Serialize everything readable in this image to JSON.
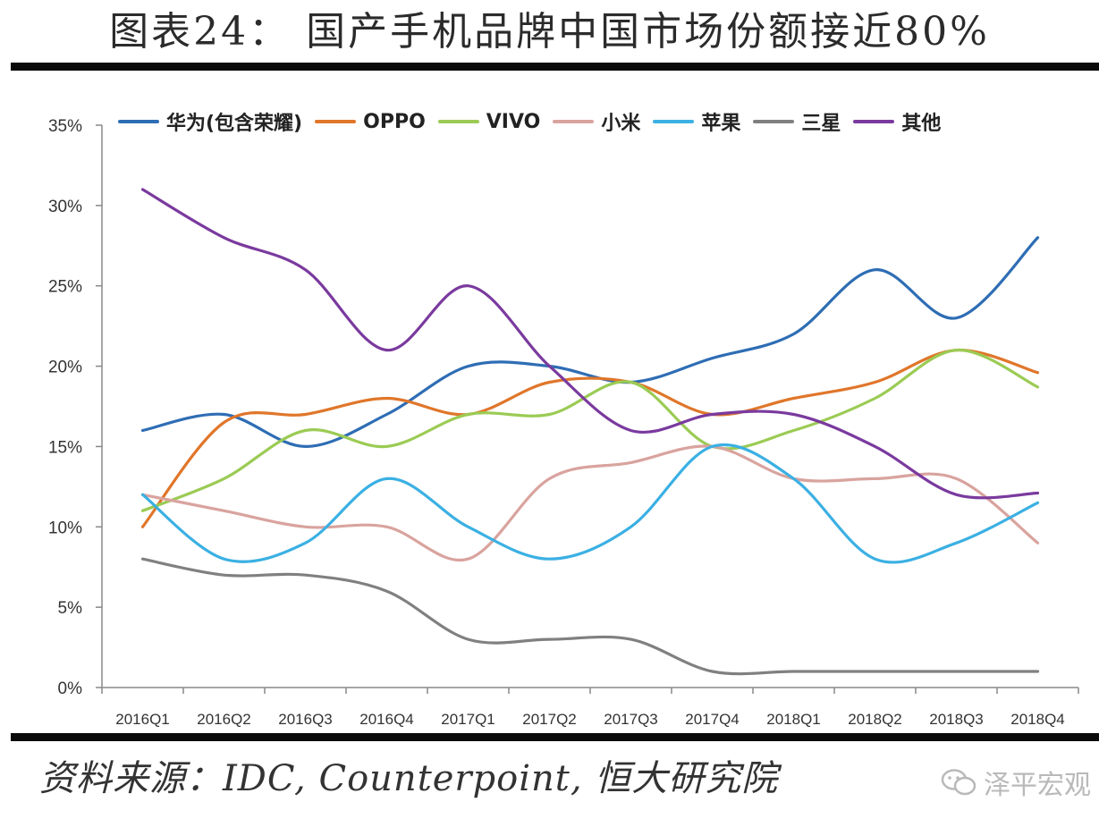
{
  "title": "图表24： 国产手机品牌中国市场份额接近80%",
  "source": "资料来源：IDC, Counterpoint, 恒大研究院",
  "watermark": "泽平宏观",
  "chart_data": {
    "type": "line",
    "categories": [
      "2016Q1",
      "2016Q2",
      "2016Q3",
      "2016Q4",
      "2017Q1",
      "2017Q2",
      "2017Q3",
      "2017Q4",
      "2018Q1",
      "2018Q2",
      "2018Q3",
      "2018Q4"
    ],
    "ylim": [
      0,
      35
    ],
    "yticks": [
      "0%",
      "5%",
      "10%",
      "15%",
      "20%",
      "25%",
      "30%",
      "35%"
    ],
    "ytick_values": [
      0,
      5,
      10,
      15,
      20,
      25,
      30,
      35
    ],
    "legend_position": "top",
    "grid": false,
    "series": [
      {
        "name": "华为(包含荣耀)",
        "color": "#2e6db4",
        "values": [
          16,
          17,
          15,
          17,
          20,
          20,
          19,
          20.5,
          22,
          26,
          23,
          28
        ]
      },
      {
        "name": "OPPO",
        "color": "#e0762a",
        "values": [
          10,
          16.5,
          17,
          18,
          17,
          19,
          19,
          17,
          18,
          19,
          21,
          19.6
        ]
      },
      {
        "name": "VIVO",
        "color": "#9bcb54",
        "values": [
          11,
          13,
          16,
          15,
          17,
          17,
          19,
          15,
          16,
          18,
          21,
          18.7
        ]
      },
      {
        "name": "小米",
        "color": "#d9a39e",
        "values": [
          12,
          11,
          10,
          10,
          8,
          13,
          14,
          15,
          13,
          13,
          13,
          9
        ]
      },
      {
        "name": "苹果",
        "color": "#3bb0e3",
        "values": [
          12,
          8,
          9,
          13,
          10,
          8,
          10,
          15,
          13,
          8,
          9,
          11.5
        ]
      },
      {
        "name": "三星",
        "color": "#808080",
        "values": [
          8,
          7,
          7,
          6,
          3,
          3,
          3,
          1,
          1,
          1,
          1,
          1
        ]
      },
      {
        "name": "其他",
        "color": "#7a3a9e",
        "values": [
          31,
          28,
          26,
          21,
          25,
          20,
          16,
          17,
          17,
          15,
          12,
          12.1
        ]
      }
    ]
  }
}
